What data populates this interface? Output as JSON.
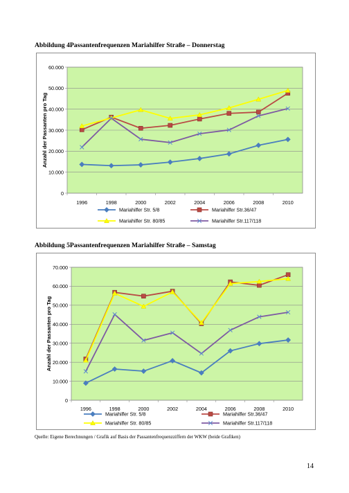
{
  "document": {
    "source_note": "Quelle: Eigene Berechnungen / Grafik auf Basis der Passantenfrequenzziffern der WKW (beide Grafiken)",
    "page_number": "14"
  },
  "chart_data": [
    {
      "type": "line",
      "title": "Abbildung 4Passantenfrequenzen  Mariahilfer Straße – Donnerstag",
      "xlabel": "",
      "ylabel": "Anzahl der Passanten pro Tag",
      "categories": [
        "1996",
        "1998",
        "2000",
        "2002",
        "2004",
        "2006",
        "2008",
        "2010"
      ],
      "ylim": [
        0,
        60000
      ],
      "yticks": [
        0,
        10000,
        20000,
        30000,
        40000,
        50000,
        60000
      ],
      "ytick_labels": [
        "0",
        "10.000",
        "20.000",
        "30.000",
        "40.000",
        "50.000",
        "60.000"
      ],
      "grid": true,
      "plot_background": "#ccf5a6",
      "legend_position": "bottom",
      "series": [
        {
          "name": "Mariahilfer Str. 5/8",
          "color": "#4a7ebf",
          "marker": "diamond",
          "values": [
            13700,
            13100,
            13500,
            14800,
            16500,
            18700,
            22800,
            25600
          ]
        },
        {
          "name": "Mariahilfer Str.36/47",
          "color": "#b94a44",
          "marker": "square",
          "values": [
            30200,
            36200,
            30900,
            32300,
            35300,
            38000,
            38600,
            47600
          ]
        },
        {
          "name": "Mariahilfer Str. 80/85",
          "color": "#ffff00",
          "marker": "triangle",
          "values": [
            32000,
            35800,
            39700,
            35600,
            37300,
            40600,
            44700,
            48900
          ]
        },
        {
          "name": "Mariahilfer Str.117/118",
          "color": "#7e5aa2",
          "marker": "x",
          "values": [
            21900,
            35700,
            25700,
            24100,
            28300,
            30100,
            36800,
            40300
          ]
        }
      ]
    },
    {
      "type": "line",
      "title": "Abbildung 5Passantenfrequenzen  Mariahilfer Straße – Samstag",
      "xlabel": "",
      "ylabel": "Anzahl der Passanten pro Tag",
      "categories": [
        "1996",
        "1998",
        "2000",
        "2002",
        "2004",
        "2006",
        "2008",
        "2010"
      ],
      "ylim": [
        0,
        70000
      ],
      "yticks": [
        0,
        10000,
        20000,
        30000,
        40000,
        50000,
        60000,
        70000
      ],
      "ytick_labels": [
        "0",
        "10.000",
        "20.000",
        "30.000",
        "40.000",
        "50.000",
        "60.000",
        "70.000"
      ],
      "grid": true,
      "plot_background": "#ccf5a6",
      "legend_position": "bottom",
      "series": [
        {
          "name": "Mariahilfer Str. 5/8",
          "color": "#4a7ebf",
          "marker": "diamond",
          "values": [
            9000,
            16400,
            15300,
            20800,
            14400,
            26000,
            29800,
            31700
          ]
        },
        {
          "name": "Mariahilfer Str.36/47",
          "color": "#b94a44",
          "marker": "square",
          "values": [
            21700,
            56800,
            54800,
            57400,
            40300,
            62300,
            60500,
            66100
          ]
        },
        {
          "name": "Mariahilfer Str. 80/85",
          "color": "#ffff00",
          "marker": "triangle",
          "values": [
            21000,
            56300,
            49400,
            57000,
            40800,
            61400,
            62500,
            64000
          ]
        },
        {
          "name": "Mariahilfer Str.117/118",
          "color": "#7e5aa2",
          "marker": "x",
          "values": [
            15200,
            45200,
            31500,
            35500,
            24600,
            36900,
            43900,
            46300
          ]
        }
      ]
    }
  ]
}
